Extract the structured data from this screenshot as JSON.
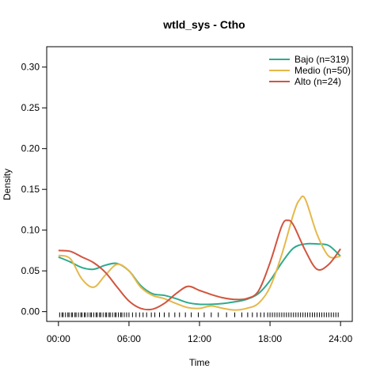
{
  "chart_data": {
    "type": "line",
    "title": "wtld_sys - Ctho",
    "xlabel": "Time",
    "ylabel": "Density",
    "xlim": [
      -1.0,
      25.0
    ],
    "ylim": [
      -0.012,
      0.325
    ],
    "x_ticks": [
      {
        "value": 0,
        "label": "00:00"
      },
      {
        "value": 6,
        "label": "06:00"
      },
      {
        "value": 12,
        "label": "12:00"
      },
      {
        "value": 18,
        "label": "18:00"
      },
      {
        "value": 24,
        "label": "24:00"
      }
    ],
    "y_ticks": [
      {
        "value": 0.0,
        "label": "0.00"
      },
      {
        "value": 0.05,
        "label": "0.05"
      },
      {
        "value": 0.1,
        "label": "0.10"
      },
      {
        "value": 0.15,
        "label": "0.15"
      },
      {
        "value": 0.2,
        "label": "0.20"
      },
      {
        "value": 0.25,
        "label": "0.25"
      },
      {
        "value": 0.3,
        "label": "0.30"
      }
    ],
    "legend_position": "top-right",
    "grid": false,
    "series": [
      {
        "name": "Bajo (n=319)",
        "color": "#2eab8c",
        "x": [
          0,
          1,
          2,
          3,
          4,
          5,
          6,
          7,
          8,
          9,
          10,
          11,
          12,
          13,
          14,
          15,
          16,
          17,
          18,
          19,
          20,
          21,
          22,
          23,
          24
        ],
        "y": [
          0.067,
          0.061,
          0.054,
          0.052,
          0.057,
          0.059,
          0.05,
          0.032,
          0.022,
          0.02,
          0.016,
          0.011,
          0.009,
          0.009,
          0.01,
          0.012,
          0.015,
          0.022,
          0.038,
          0.06,
          0.078,
          0.083,
          0.083,
          0.081,
          0.068
        ]
      },
      {
        "name": "Medio (n=50)",
        "color": "#e5b84a",
        "x": [
          0,
          1,
          2,
          3,
          4,
          5,
          6,
          7,
          8,
          9,
          10,
          11,
          12,
          13,
          14,
          15,
          16,
          17,
          18,
          19,
          20,
          20.5,
          21,
          22,
          23,
          24
        ],
        "y": [
          0.069,
          0.065,
          0.04,
          0.03,
          0.045,
          0.058,
          0.05,
          0.03,
          0.02,
          0.016,
          0.01,
          0.005,
          0.004,
          0.007,
          0.004,
          0.002,
          0.004,
          0.01,
          0.03,
          0.07,
          0.12,
          0.137,
          0.138,
          0.095,
          0.068,
          0.068
        ]
      },
      {
        "name": "Alto (n=24)",
        "color": "#d1553e",
        "x": [
          0,
          1,
          2,
          3,
          4,
          5,
          6,
          7,
          8,
          9,
          10,
          11,
          12,
          13,
          14,
          15,
          16,
          17,
          18,
          19,
          19.5,
          20,
          21,
          22,
          23,
          24
        ],
        "y": [
          0.075,
          0.074,
          0.067,
          0.06,
          0.048,
          0.03,
          0.013,
          0.004,
          0.003,
          0.01,
          0.022,
          0.031,
          0.026,
          0.021,
          0.017,
          0.015,
          0.016,
          0.025,
          0.06,
          0.105,
          0.112,
          0.106,
          0.075,
          0.052,
          0.058,
          0.077
        ]
      }
    ],
    "rug": [
      0.1,
      0.3,
      0.4,
      0.6,
      0.8,
      0.9,
      1.1,
      1.2,
      1.4,
      1.5,
      1.7,
      1.9,
      2.0,
      2.2,
      2.3,
      2.5,
      2.7,
      2.8,
      3.0,
      3.2,
      3.3,
      3.5,
      3.6,
      3.8,
      4.0,
      4.1,
      4.3,
      4.4,
      4.6,
      4.8,
      4.9,
      5.1,
      5.3,
      5.4,
      5.6,
      5.8,
      6.0,
      6.3,
      6.6,
      6.9,
      7.2,
      7.5,
      7.9,
      8.2,
      8.6,
      9.0,
      9.4,
      9.9,
      10.3,
      10.8,
      11.3,
      11.9,
      12.4,
      13.0,
      13.6,
      14.3,
      15.0,
      15.6,
      16.1,
      16.5,
      16.9,
      17.2,
      17.5,
      17.8,
      18.0,
      18.2,
      18.4,
      18.6,
      18.8,
      19.0,
      19.2,
      19.4,
      19.6,
      19.8,
      20.0,
      20.2,
      20.4,
      20.6,
      20.8,
      21.0,
      21.2,
      21.4,
      21.6,
      21.8,
      22.0,
      22.2,
      22.4,
      22.6,
      22.8,
      23.0,
      23.2,
      23.4,
      23.6,
      23.8
    ]
  }
}
